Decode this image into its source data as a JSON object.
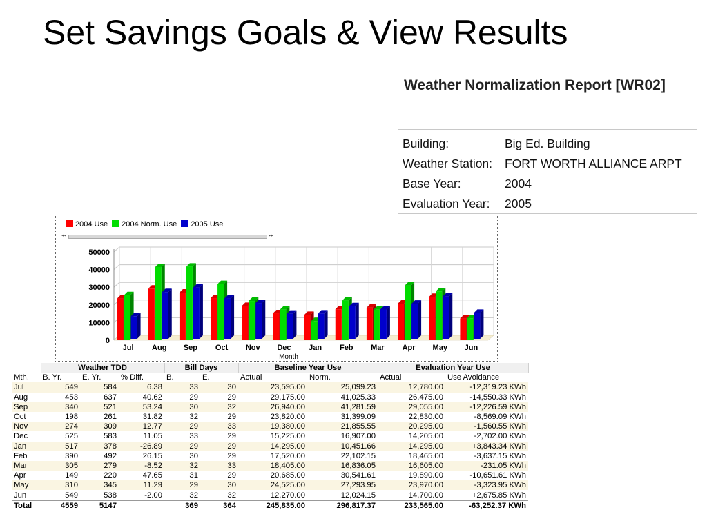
{
  "slide": {
    "title": "Set Savings Goals & View Results"
  },
  "report": {
    "title": "Weather Normalization Report [WR02]",
    "info": [
      {
        "label": "Building:",
        "value": "Big Ed. Building"
      },
      {
        "label": "Weather Station:",
        "value": "FORT WORTH ALLIANCE ARPT"
      },
      {
        "label": "Base Year:",
        "value": "2004"
      },
      {
        "label": "Evaluation Year:",
        "value": "2005"
      }
    ]
  },
  "chart_data": {
    "type": "bar",
    "categories": [
      "Jul",
      "Aug",
      "Sep",
      "Oct",
      "Nov",
      "Dec",
      "Jan",
      "Feb",
      "Mar",
      "Apr",
      "May",
      "Jun"
    ],
    "series": [
      {
        "name": "2004 Use",
        "color": "#ff0000",
        "values": [
          23595,
          29175,
          26940,
          23820,
          19380,
          15225,
          14295,
          17520,
          18405,
          20685,
          24525,
          12270
        ]
      },
      {
        "name": "2004 Norm. Use",
        "color": "#00dd00",
        "values": [
          25099.23,
          41025.33,
          41281.59,
          31399.09,
          21855.55,
          16907,
          10451.66,
          22102.15,
          16836.05,
          30541.61,
          27293.95,
          12024.15
        ]
      },
      {
        "name": "2005 Use",
        "color": "#0000cc",
        "values": [
          12780,
          26475,
          29055,
          22830,
          20295,
          14205,
          14295,
          18465,
          16605,
          19890,
          23970,
          14700
        ]
      }
    ],
    "yticks": [
      "0",
      "10000",
      "20000",
      "30000",
      "40000",
      "50000"
    ],
    "ylim": [
      0,
      50000
    ],
    "xlabel": "Month",
    "grid": true,
    "legend": "top-left"
  },
  "table": {
    "groups": [
      "Weather TDD",
      "Bill Days",
      "Baseline Year Use",
      "Evaluation Year Use"
    ],
    "headers": [
      "Mth.",
      "B. Yr.",
      "E. Yr.",
      "% Diff.",
      "B.",
      "E.",
      "Actual",
      "Norm.",
      "Actual",
      "Use Avoidance"
    ],
    "rows": [
      [
        "Jul",
        "549",
        "584",
        "6.38",
        "33",
        "30",
        "23,595.00",
        "25,099.23",
        "12,780.00",
        "-12,319.23 KWh"
      ],
      [
        "Aug",
        "453",
        "637",
        "40.62",
        "29",
        "29",
        "29,175.00",
        "41,025.33",
        "26,475.00",
        "-14,550.33 KWh"
      ],
      [
        "Sep",
        "340",
        "521",
        "53.24",
        "30",
        "32",
        "26,940.00",
        "41,281.59",
        "29,055.00",
        "-12,226.59 KWh"
      ],
      [
        "Oct",
        "198",
        "261",
        "31.82",
        "32",
        "29",
        "23,820.00",
        "31,399.09",
        "22,830.00",
        "-8,569.09 KWh"
      ],
      [
        "Nov",
        "274",
        "309",
        "12.77",
        "29",
        "33",
        "19,380.00",
        "21,855.55",
        "20,295.00",
        "-1,560.55 KWh"
      ],
      [
        "Dec",
        "525",
        "583",
        "11.05",
        "33",
        "29",
        "15,225.00",
        "16,907.00",
        "14,205.00",
        "-2,702.00 KWh"
      ],
      [
        "Jan",
        "517",
        "378",
        "-26.89",
        "29",
        "29",
        "14,295.00",
        "10,451.66",
        "14,295.00",
        "+3,843.34 KWh"
      ],
      [
        "Feb",
        "390",
        "492",
        "26.15",
        "30",
        "29",
        "17,520.00",
        "22,102.15",
        "18,465.00",
        "-3,637.15 KWh"
      ],
      [
        "Mar",
        "305",
        "279",
        "-8.52",
        "32",
        "33",
        "18,405.00",
        "16,836.05",
        "16,605.00",
        "-231.05 KWh"
      ],
      [
        "Apr",
        "149",
        "220",
        "47.65",
        "31",
        "29",
        "20,685.00",
        "30,541.61",
        "19,890.00",
        "-10,651.61 KWh"
      ],
      [
        "May",
        "310",
        "345",
        "11.29",
        "29",
        "30",
        "24,525.00",
        "27,293.95",
        "23,970.00",
        "-3,323.95 KWh"
      ],
      [
        "Jun",
        "549",
        "538",
        "-2.00",
        "32",
        "32",
        "12,270.00",
        "12,024.15",
        "14,700.00",
        "+2,675.85 KWh"
      ]
    ],
    "total": [
      "Total",
      "4559",
      "5147",
      "",
      "369",
      "364",
      "245,835.00",
      "296,817.37",
      "233,565.00",
      "-63,252.37 KWh"
    ]
  }
}
